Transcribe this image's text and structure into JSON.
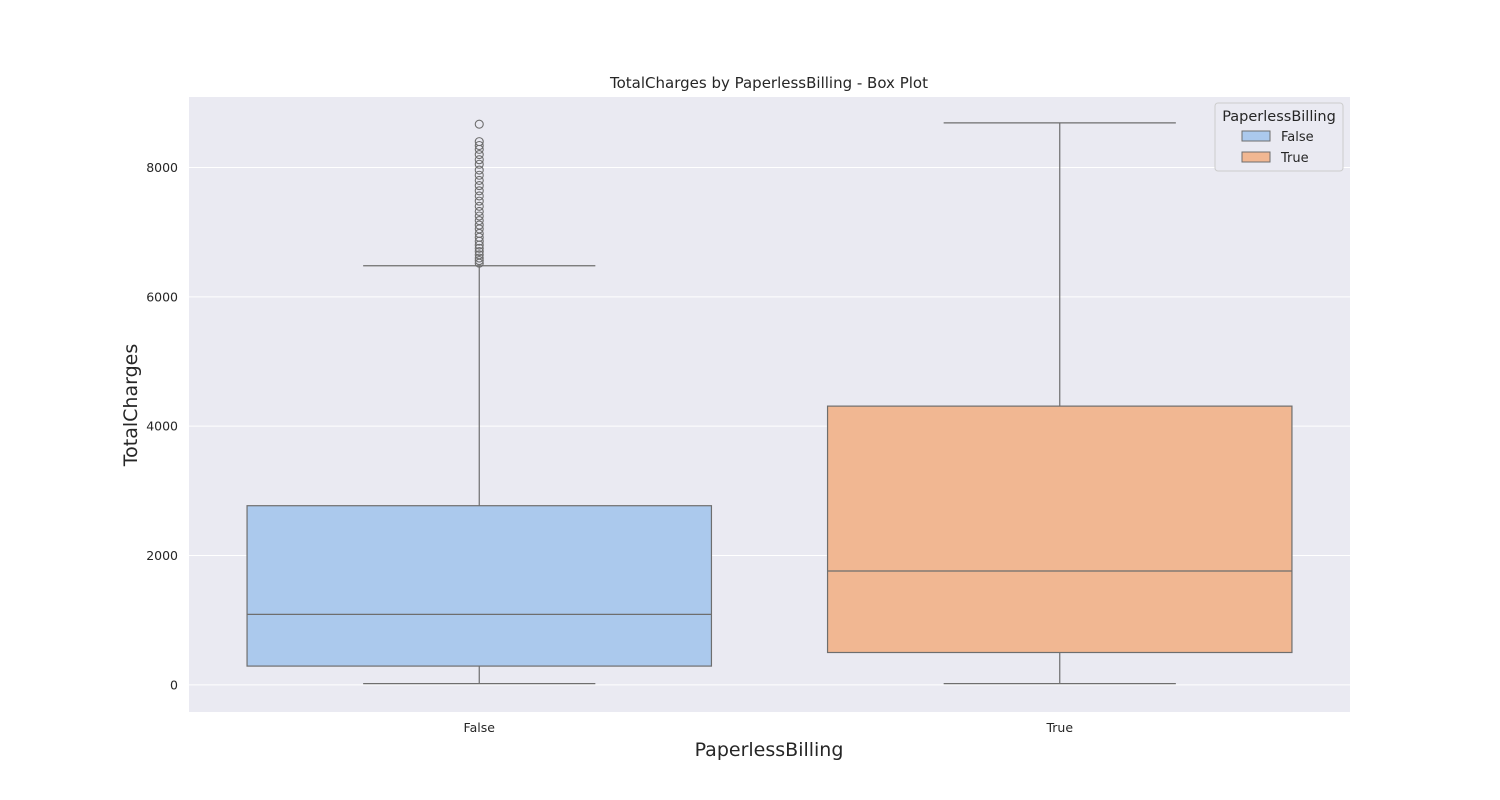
{
  "chart_data": {
    "type": "box",
    "title": "TotalCharges by PaperlessBilling - Box Plot",
    "xlabel": "PaperlessBilling",
    "ylabel": "TotalCharges",
    "categories": [
      "False",
      "True"
    ],
    "ylim": [
      -420,
      9090
    ],
    "yticks": [
      0,
      2000,
      4000,
      6000,
      8000
    ],
    "grid": true,
    "legend": {
      "title": "PaperlessBilling",
      "placement": "top-right",
      "entries": [
        "False",
        "True"
      ]
    },
    "colors": {
      "background": "#eaeaf2",
      "grid": "#ffffff",
      "line": "#6e6e6e",
      "False": "#abc9ed",
      "True": "#f1b792"
    },
    "boxes": [
      {
        "category": "False",
        "whisker_low": 18.8,
        "q1": 290,
        "median": 1090,
        "q3": 2770,
        "whisker_high": 6480,
        "outliers": [
          6520,
          6560,
          6600,
          6650,
          6700,
          6750,
          6800,
          6860,
          6920,
          6980,
          7050,
          7110,
          7180,
          7250,
          7320,
          7400,
          7480,
          7560,
          7640,
          7720,
          7800,
          7880,
          7960,
          8050,
          8120,
          8200,
          8280,
          8340,
          8400,
          8670
        ]
      },
      {
        "category": "True",
        "whisker_low": 18.8,
        "q1": 500,
        "median": 1760,
        "q3": 4310,
        "whisker_high": 8690,
        "outliers": []
      }
    ]
  }
}
